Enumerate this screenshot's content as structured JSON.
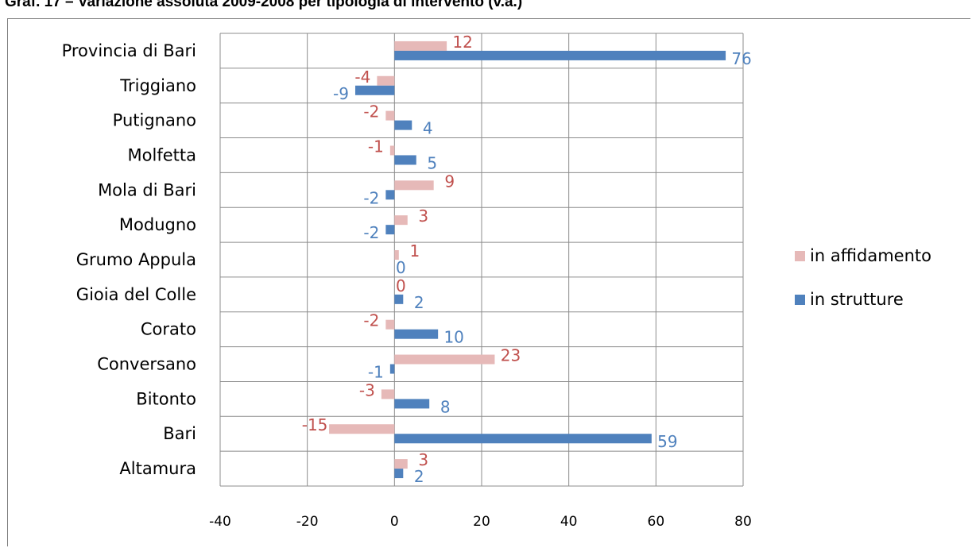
{
  "chart_data": {
    "type": "bar",
    "orientation": "horizontal",
    "title": "Graf. 17 – Variazione assoluta 2009-2008 per tipologia di intervento (v.a.)",
    "categories": [
      "Provincia di Bari",
      "Triggiano",
      "Putignano",
      "Molfetta",
      "Mola di Bari",
      "Modugno",
      "Grumo Appula",
      "Gioia del Colle",
      "Corato",
      "Conversano",
      "Bitonto",
      "Bari",
      "Altamura"
    ],
    "series": [
      {
        "name": "in affidamento",
        "color": "#e6b9b8",
        "label_color": "#c0504d",
        "values": [
          12,
          -4,
          -2,
          -1,
          9,
          3,
          1,
          0,
          -2,
          23,
          -3,
          -15,
          3
        ]
      },
      {
        "name": "in strutture",
        "color": "#4f81bd",
        "label_color": "#4f81bd",
        "values": [
          76,
          -9,
          4,
          5,
          -2,
          -2,
          0,
          2,
          10,
          -1,
          8,
          59,
          2
        ]
      }
    ],
    "xlim": [
      -40,
      80
    ],
    "xticks": [
      -40,
      -20,
      0,
      20,
      40,
      60,
      80
    ],
    "xlabel": "",
    "ylabel": "",
    "grid": true,
    "legend_position": "right"
  }
}
